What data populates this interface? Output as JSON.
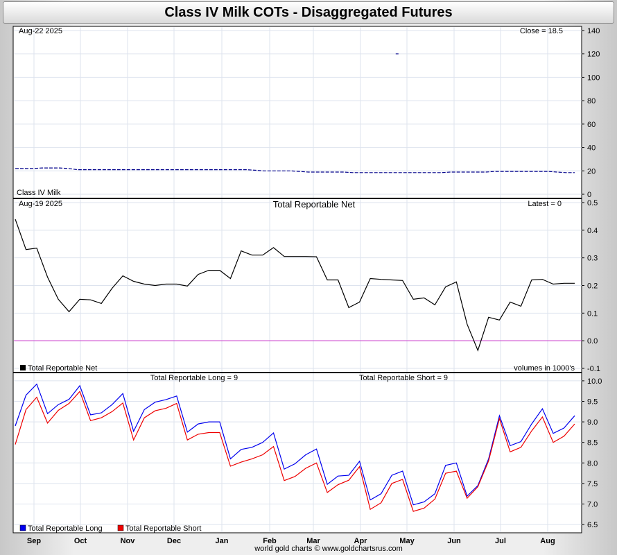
{
  "title": "Class IV Milk COTs - Disaggregated Futures",
  "footer": "world gold charts © www.goldchartsrus.com",
  "x_axis": {
    "months": [
      "Sep",
      "Oct",
      "Nov",
      "Dec",
      "Jan",
      "Feb",
      "Mar",
      "Apr",
      "May",
      "Jun",
      "Jul",
      "Aug"
    ]
  },
  "colors": {
    "price": "#00008b",
    "net": "#000000",
    "zero_line": "#cc33cc",
    "long": "#0000ee",
    "short": "#ee0000",
    "grid": "#dde3ee"
  },
  "chart_data": [
    {
      "type": "line",
      "panel": "price",
      "date_label": "Aug-22  2025",
      "close_label": "Close = 18.5",
      "series_label": "Class IV Milk",
      "ylim": [
        0,
        140
      ],
      "yticks": [
        0,
        20,
        40,
        60,
        80,
        100,
        120,
        140
      ],
      "series": [
        {
          "values": [
            22,
            22,
            22,
            22.5,
            22.5,
            22.5,
            22,
            21,
            21,
            21,
            21,
            21,
            21,
            21,
            21,
            21,
            21,
            21,
            21,
            21,
            21,
            21,
            21,
            21,
            21,
            21,
            21,
            20.5,
            20,
            20,
            20,
            20,
            19.5,
            19,
            19,
            19,
            19,
            19,
            18.5,
            18.5,
            18.5,
            18.5,
            18.5,
            18.5,
            18.5,
            18.5,
            18.5,
            18.5,
            18.5,
            19,
            19,
            19,
            19,
            19,
            19.5,
            19.5,
            19.5,
            19.5,
            19.5,
            19.5,
            19.5,
            19,
            18.5,
            18.5
          ]
        }
      ],
      "outlier": {
        "index": 43,
        "value": 120
      }
    },
    {
      "type": "line",
      "panel": "net",
      "date_label": "Aug-19  2025",
      "title": "Total Reportable Net",
      "latest_label": "Latest = 0",
      "legend": "Total Reportable Net",
      "units_label": "volumes in 1000's",
      "ylim": [
        -0.1,
        0.5
      ],
      "yticks": [
        -0.1,
        0.0,
        0.1,
        0.2,
        0.3,
        0.4,
        0.5
      ],
      "series": [
        {
          "name": "Total Reportable Net",
          "values": [
            0.44,
            0.33,
            0.335,
            0.23,
            0.15,
            0.105,
            0.15,
            0.148,
            0.135,
            0.19,
            0.235,
            0.215,
            0.205,
            0.2,
            0.205,
            0.205,
            0.198,
            0.24,
            0.255,
            0.255,
            0.225,
            0.325,
            0.31,
            0.31,
            0.337,
            0.305,
            0.305,
            0.305,
            0.304,
            0.22,
            0.22,
            0.12,
            0.14,
            0.225,
            0.222,
            0.22,
            0.218,
            0.15,
            0.155,
            0.13,
            0.195,
            0.213,
            0.06,
            -0.035,
            0.085,
            0.075,
            0.14,
            0.125,
            0.22,
            0.222,
            0.205,
            0.208,
            0.208
          ]
        }
      ]
    },
    {
      "type": "line",
      "panel": "long_short",
      "long_label": "Total Reportable Long = 9",
      "short_label": "Total Reportable Short = 9",
      "ylim": [
        6.4,
        10.1
      ],
      "yticks": [
        6.5,
        7.0,
        7.5,
        8.0,
        8.5,
        9.0,
        9.5,
        10.0
      ],
      "series": [
        {
          "name": "Total Reportable Long",
          "values": [
            8.9,
            9.65,
            9.92,
            9.2,
            9.42,
            9.55,
            9.88,
            9.17,
            9.22,
            9.42,
            9.69,
            8.77,
            9.3,
            9.48,
            9.54,
            9.63,
            8.75,
            8.95,
            9.0,
            9.0,
            8.1,
            8.33,
            8.38,
            8.5,
            8.73,
            7.85,
            7.98,
            8.2,
            8.34,
            7.48,
            7.68,
            7.7,
            8.04,
            7.1,
            7.25,
            7.7,
            7.8,
            6.98,
            7.05,
            7.25,
            7.94,
            8.0,
            7.19,
            7.45,
            8.1,
            9.15,
            8.42,
            8.52,
            8.95,
            9.32,
            8.72,
            8.85,
            9.15
          ]
        },
        {
          "name": "Total Reportable Short",
          "values": [
            8.45,
            9.3,
            9.6,
            8.97,
            9.28,
            9.45,
            9.74,
            9.03,
            9.1,
            9.25,
            9.46,
            8.56,
            9.1,
            9.27,
            9.33,
            9.45,
            8.56,
            8.7,
            8.74,
            8.74,
            7.92,
            8.02,
            8.1,
            8.2,
            8.4,
            7.57,
            7.67,
            7.87,
            8.0,
            7.28,
            7.47,
            7.58,
            7.91,
            6.87,
            7.03,
            7.5,
            7.6,
            6.82,
            6.9,
            7.12,
            7.75,
            7.8,
            7.14,
            7.42,
            8.05,
            9.08,
            8.27,
            8.38,
            8.78,
            9.12,
            8.5,
            8.65,
            8.95
          ]
        }
      ]
    }
  ]
}
